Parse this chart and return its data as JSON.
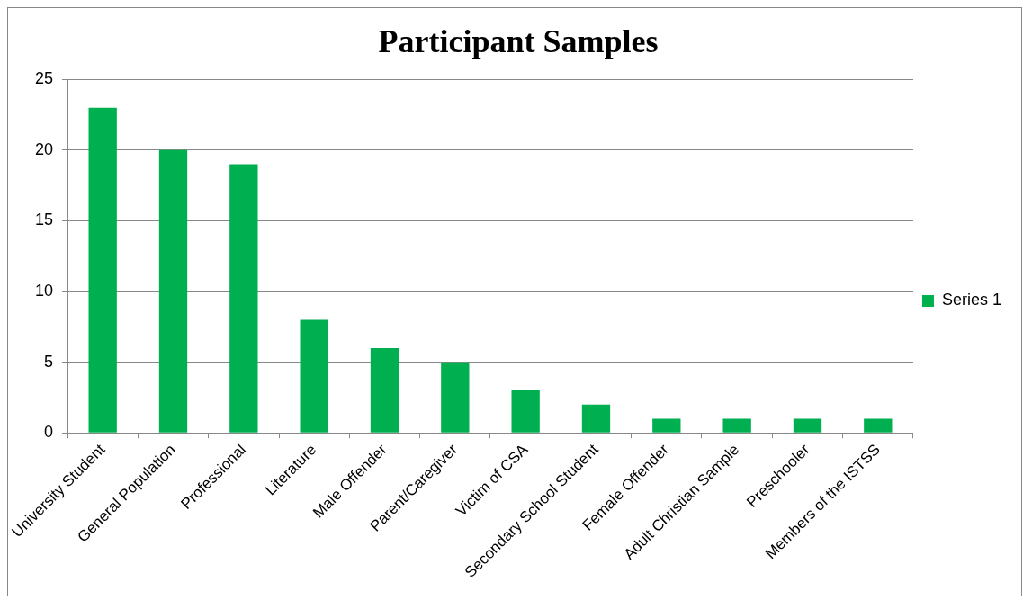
{
  "chart_data": {
    "type": "bar",
    "title": "Participant Samples",
    "categories": [
      "University Student",
      "General Population",
      "Professional",
      "Literature",
      "Male Offender",
      "Parent/Caregiver",
      "Victim of CSA",
      "Secondary School Student",
      "Female Offender",
      "Adult Christian Sample",
      "Preschooler",
      "Members of the ISTSS"
    ],
    "series": [
      {
        "name": "Series 1",
        "color": "#00b050",
        "values": [
          23,
          20,
          19,
          8,
          6,
          5,
          3,
          2,
          1,
          1,
          1,
          1
        ]
      }
    ],
    "ylim": [
      0,
      25
    ],
    "yticks": [
      0,
      5,
      10,
      15,
      20,
      25
    ],
    "grid": "y",
    "legend": "right"
  }
}
